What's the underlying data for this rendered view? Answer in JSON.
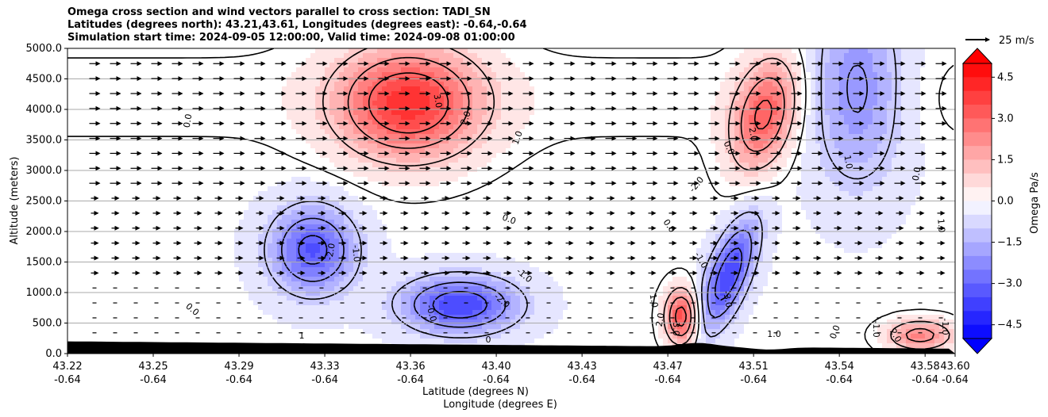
{
  "title_lines": [
    "Omega cross section and wind vectors parallel to cross section: TADI_SN",
    "Latitudes (degrees north): 43.21,43.61, Longitudes (degrees east): -0.64,-0.64",
    "Simulation start time: 2024-09-05 12:00:00, Valid time: 2024-09-08 01:00:00"
  ],
  "chart_data": {
    "type": "heatmap",
    "ylabel": "Altitude (meters)",
    "xlabel_lines": [
      "Latitude (degrees N)",
      "Longitude (degrees E)"
    ],
    "ylim": [
      0,
      5000
    ],
    "yticks": [
      0,
      500,
      1000,
      1500,
      2000,
      2500,
      3000,
      3500,
      4000,
      4500,
      5000
    ],
    "ytick_labels": [
      "0.0",
      "500.0",
      "1000.0",
      "1500.0",
      "2000.0",
      "2500.0",
      "3000.0",
      "3500.0",
      "4000.0",
      "4500.0",
      "5000.0"
    ],
    "xlim": [
      43.22,
      43.6
    ],
    "xticks_lat": [
      "43.22",
      "43.25",
      "43.29",
      "43.33",
      "43.36",
      "43.40",
      "43.43",
      "43.47",
      "43.51",
      "43.54",
      "43.58",
      "43.60"
    ],
    "xticks_lon": [
      "-0.64",
      "-0.64",
      "-0.64",
      "-0.64",
      "-0.64",
      "-0.64",
      "-0.64",
      "-0.64",
      "-0.64",
      "-0.64",
      "-0.64",
      "-0.64"
    ],
    "horizontal_grid": true,
    "colorbar": {
      "label": "Omega Pa/s",
      "range": [
        -5,
        5
      ],
      "ticks": [
        -4.5,
        -3.0,
        -1.5,
        0.0,
        1.5,
        3.0,
        4.5
      ],
      "tick_labels": [
        "−4.5",
        "−3.0",
        "−1.5",
        "0.0",
        "1.5",
        "3.0",
        "4.5"
      ],
      "cmap": "bwr"
    },
    "quiver_key": "25 m/s",
    "features": [
      {
        "value": 4.0,
        "lat": 43.366,
        "z": 4100
      },
      {
        "value": -3.2,
        "lat": 43.325,
        "z": 1700
      },
      {
        "value": -3.6,
        "lat": 43.388,
        "z": 800
      },
      {
        "value": -3.6,
        "lat": 43.503,
        "z": 1300
      },
      {
        "value": 3.2,
        "lat": 43.518,
        "z": 3900
      },
      {
        "value": 3.8,
        "lat": 43.483,
        "z": 600
      },
      {
        "value": -2.2,
        "lat": 43.558,
        "z": 4300
      },
      {
        "value": 2.6,
        "lat": 43.585,
        "z": 300
      }
    ],
    "contour_labels": [
      "0.0",
      "0.0",
      "0.0",
      "0.0",
      "0.0",
      "0.0",
      "0.0",
      "1.0",
      "1.0",
      "1.0",
      "1.0",
      "1.0",
      "2.0",
      "2.0",
      "2.0",
      "2.0",
      "3.0",
      "-1.0",
      "-1.0",
      "-1.0",
      "-1.0",
      "-2.0",
      "-2.0",
      "-2.0",
      "-3.0",
      "-3.0",
      "-0.0",
      "0",
      "1",
      "-1.0"
    ]
  }
}
